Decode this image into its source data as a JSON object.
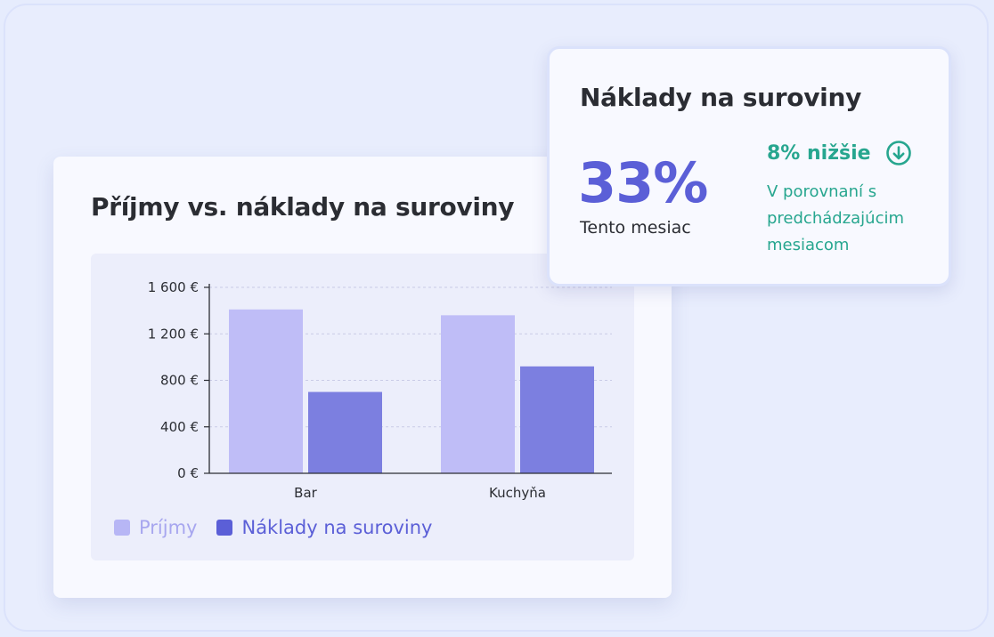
{
  "chart_card": {
    "title": "Příjmy vs. náklady na suroviny"
  },
  "chart_data": {
    "type": "bar",
    "categories": [
      "Bar",
      "Kuchyňa"
    ],
    "series": [
      {
        "name": "Príjmy",
        "values": [
          1410,
          1360
        ],
        "color": "#bfbdf7"
      },
      {
        "name": "Náklady na suroviny",
        "values": [
          700,
          920
        ],
        "color": "#7c7fe0"
      }
    ],
    "y_ticks": [
      0,
      400,
      800,
      1200,
      1600
    ],
    "y_tick_labels": [
      "0 €",
      "400 €",
      "800 €",
      "1 200 €",
      "1 600 €"
    ],
    "ylim": [
      0,
      1600
    ],
    "grid": true,
    "legend": "bottom-left"
  },
  "legend": {
    "items": [
      {
        "label": "Príjmy",
        "color": "#b7b6f5",
        "text_color": "#a7a6ef"
      },
      {
        "label": "Náklady na suroviny",
        "color": "#5b5fd7",
        "text_color": "#5b5fd7"
      }
    ]
  },
  "stat_card": {
    "title": "Náklady na suroviny",
    "value": "33%",
    "value_label": "Tento mesiac",
    "trend_text": "8% nižšie",
    "trend_icon": "arrow-down-circle-icon",
    "trend_note": "V porovnaní s predchádzajúcim mesiacom",
    "trend_color": "#27a68f"
  }
}
